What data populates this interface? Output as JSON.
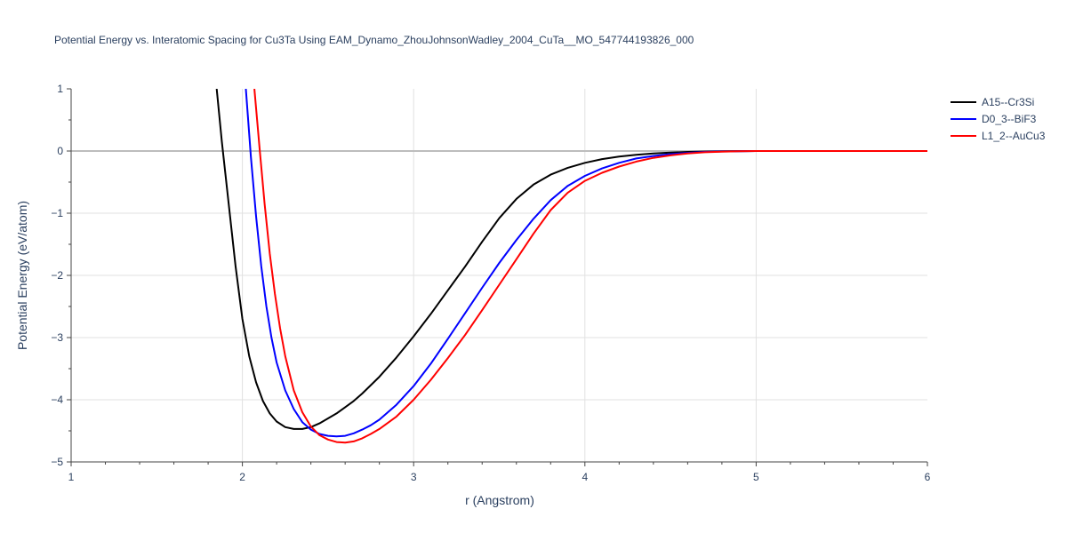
{
  "chart_data": {
    "type": "line",
    "title": "Potential Energy vs. Interatomic Spacing for Cu3Ta Using EAM_Dynamo_ZhouJohnsonWadley_2004_CuTa__MO_547744193826_000",
    "xlabel": "r (Angstrom)",
    "ylabel": "Potential Energy (eV/atom)",
    "xlim": [
      1,
      6
    ],
    "ylim": [
      -5,
      1
    ],
    "xticks": [
      "1",
      "2",
      "3",
      "4",
      "5",
      "6"
    ],
    "yticks": [
      "1",
      "0",
      "−1",
      "−2",
      "−3",
      "−4",
      "−5"
    ],
    "grid": true,
    "legend_position": "top-right",
    "series": [
      {
        "name": "A15--Cr3Si",
        "color": "#000000",
        "x": [
          1.85,
          1.88,
          1.92,
          1.96,
          2.0,
          2.04,
          2.08,
          2.12,
          2.16,
          2.2,
          2.25,
          2.3,
          2.35,
          2.4,
          2.45,
          2.5,
          2.55,
          2.6,
          2.65,
          2.7,
          2.8,
          2.9,
          3.0,
          3.1,
          3.2,
          3.3,
          3.4,
          3.5,
          3.6,
          3.7,
          3.8,
          3.9,
          4.0,
          4.1,
          4.2,
          4.3,
          4.4,
          4.5,
          4.6,
          4.7,
          4.8,
          4.9,
          5.0,
          5.5,
          6.0
        ],
        "y": [
          1.0,
          0.15,
          -0.85,
          -1.85,
          -2.7,
          -3.3,
          -3.72,
          -4.02,
          -4.22,
          -4.35,
          -4.44,
          -4.47,
          -4.47,
          -4.44,
          -4.38,
          -4.3,
          -4.22,
          -4.12,
          -4.02,
          -3.9,
          -3.63,
          -3.32,
          -2.98,
          -2.62,
          -2.24,
          -1.86,
          -1.46,
          -1.08,
          -0.77,
          -0.54,
          -0.38,
          -0.27,
          -0.19,
          -0.13,
          -0.09,
          -0.06,
          -0.04,
          -0.025,
          -0.015,
          -0.008,
          -0.004,
          -0.002,
          0.0,
          0.0,
          0.0
        ]
      },
      {
        "name": "D0_3--BiF3",
        "color": "#0000ff",
        "x": [
          2.02,
          2.05,
          2.08,
          2.11,
          2.14,
          2.17,
          2.2,
          2.25,
          2.3,
          2.35,
          2.4,
          2.45,
          2.5,
          2.55,
          2.6,
          2.65,
          2.7,
          2.75,
          2.8,
          2.9,
          3.0,
          3.1,
          3.2,
          3.3,
          3.4,
          3.5,
          3.6,
          3.7,
          3.8,
          3.9,
          4.0,
          4.1,
          4.2,
          4.3,
          4.4,
          4.5,
          4.6,
          4.7,
          4.8,
          4.9,
          5.0,
          5.5,
          6.0
        ],
        "y": [
          1.0,
          -0.1,
          -1.05,
          -1.85,
          -2.5,
          -3.0,
          -3.4,
          -3.85,
          -4.15,
          -4.36,
          -4.48,
          -4.55,
          -4.58,
          -4.59,
          -4.58,
          -4.54,
          -4.48,
          -4.41,
          -4.32,
          -4.08,
          -3.78,
          -3.42,
          -3.02,
          -2.61,
          -2.2,
          -1.8,
          -1.43,
          -1.09,
          -0.79,
          -0.56,
          -0.4,
          -0.28,
          -0.19,
          -0.12,
          -0.08,
          -0.05,
          -0.03,
          -0.015,
          -0.007,
          -0.003,
          0.0,
          0.0,
          0.0
        ]
      },
      {
        "name": "L1_2--AuCu3",
        "color": "#ff0000",
        "x": [
          2.07,
          2.1,
          2.13,
          2.16,
          2.19,
          2.22,
          2.25,
          2.3,
          2.35,
          2.4,
          2.45,
          2.5,
          2.55,
          2.6,
          2.65,
          2.7,
          2.75,
          2.8,
          2.9,
          3.0,
          3.1,
          3.2,
          3.3,
          3.4,
          3.5,
          3.6,
          3.7,
          3.8,
          3.9,
          4.0,
          4.1,
          4.2,
          4.3,
          4.4,
          4.5,
          4.6,
          4.7,
          4.8,
          4.9,
          5.0,
          5.5,
          6.0
        ],
        "y": [
          1.0,
          0.05,
          -0.85,
          -1.65,
          -2.3,
          -2.85,
          -3.3,
          -3.85,
          -4.2,
          -4.43,
          -4.57,
          -4.64,
          -4.68,
          -4.69,
          -4.67,
          -4.62,
          -4.55,
          -4.47,
          -4.27,
          -4.0,
          -3.68,
          -3.33,
          -2.96,
          -2.56,
          -2.15,
          -1.74,
          -1.33,
          -0.95,
          -0.67,
          -0.48,
          -0.35,
          -0.25,
          -0.17,
          -0.11,
          -0.07,
          -0.04,
          -0.02,
          -0.01,
          -0.004,
          0.0,
          0.0,
          0.0
        ]
      }
    ]
  }
}
